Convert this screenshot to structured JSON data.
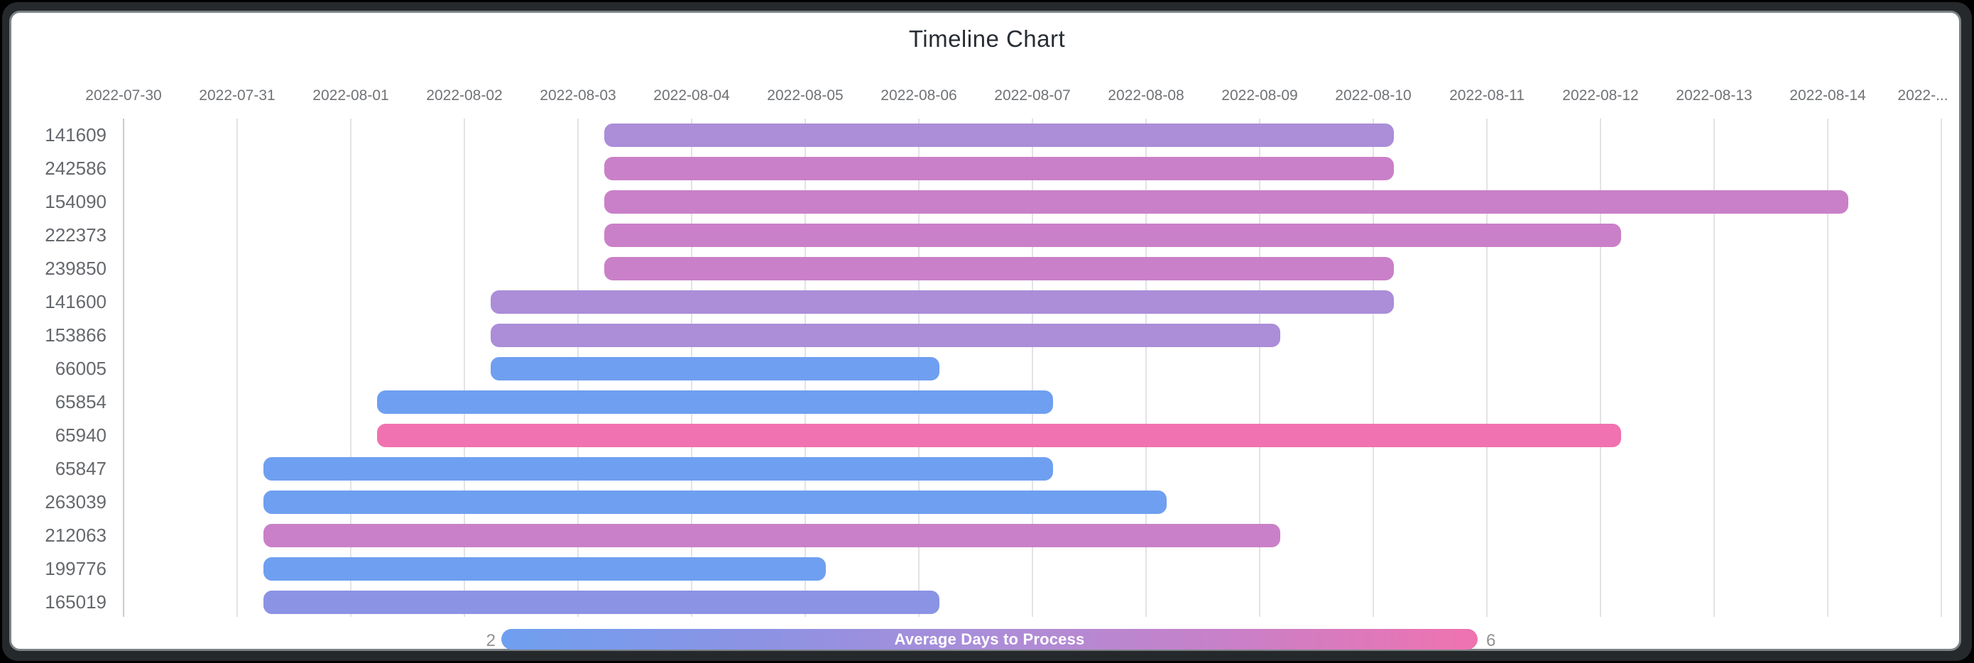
{
  "chart_data": {
    "type": "timeline",
    "title": "Timeline Chart",
    "x_axis": {
      "tick_labels": [
        "2022-07-30",
        "2022-07-31",
        "2022-08-01",
        "2022-08-02",
        "2022-08-03",
        "2022-08-04",
        "2022-08-05",
        "2022-08-06",
        "2022-08-07",
        "2022-08-08",
        "2022-08-09",
        "2022-08-10",
        "2022-08-11",
        "2022-08-12",
        "2022-08-13",
        "2022-08-14"
      ],
      "overflow_tick_label": "2022-...",
      "range_start": "2022-07-30",
      "range_end": "2022-08-15",
      "grid": true
    },
    "rows": [
      {
        "id": "141609",
        "start": "2022-08-03",
        "end": "2022-08-10",
        "avg_days_to_process": 4
      },
      {
        "id": "242586",
        "start": "2022-08-03",
        "end": "2022-08-10",
        "avg_days_to_process": 5
      },
      {
        "id": "154090",
        "start": "2022-08-03",
        "end": "2022-08-14",
        "avg_days_to_process": 5
      },
      {
        "id": "222373",
        "start": "2022-08-03",
        "end": "2022-08-12",
        "avg_days_to_process": 5
      },
      {
        "id": "239850",
        "start": "2022-08-03",
        "end": "2022-08-10",
        "avg_days_to_process": 5
      },
      {
        "id": "141600",
        "start": "2022-08-02",
        "end": "2022-08-10",
        "avg_days_to_process": 4
      },
      {
        "id": "153866",
        "start": "2022-08-02",
        "end": "2022-08-09",
        "avg_days_to_process": 4
      },
      {
        "id": "66005",
        "start": "2022-08-02",
        "end": "2022-08-06",
        "avg_days_to_process": 2
      },
      {
        "id": "65854",
        "start": "2022-08-01",
        "end": "2022-08-07",
        "avg_days_to_process": 2
      },
      {
        "id": "65940",
        "start": "2022-08-01",
        "end": "2022-08-12",
        "avg_days_to_process": 6
      },
      {
        "id": "65847",
        "start": "2022-07-31",
        "end": "2022-08-07",
        "avg_days_to_process": 2
      },
      {
        "id": "263039",
        "start": "2022-07-31",
        "end": "2022-08-08",
        "avg_days_to_process": 2
      },
      {
        "id": "212063",
        "start": "2022-07-31",
        "end": "2022-08-09",
        "avg_days_to_process": 5
      },
      {
        "id": "199776",
        "start": "2022-07-31",
        "end": "2022-08-05",
        "avg_days_to_process": 2
      },
      {
        "id": "165019",
        "start": "2022-07-31",
        "end": "2022-08-06",
        "avg_days_to_process": 3
      }
    ],
    "legend": {
      "title": "Average Days to Process",
      "min_label": "2",
      "max_label": "6",
      "min": 2,
      "max": 6,
      "position": "bottom-center"
    },
    "color_scale": {
      "2": "#6f9ff0",
      "3": "#8b93e4",
      "4": "#ab8dd8",
      "5": "#c980c8",
      "6": "#f072b0"
    }
  },
  "colors": {
    "page_background": "#000000",
    "frame_background": "#26292c",
    "frame_edge": "#7b8285",
    "card_background": "#ffffff",
    "title_text": "#282d34",
    "x_label_text": "#6f7276",
    "row_label_text": "#65686c",
    "legend_minmax_text": "#8f9295",
    "legend_title_text": "#ffffff",
    "gridline": "#e1e3e6",
    "first_gridline": "#c3ced8"
  }
}
